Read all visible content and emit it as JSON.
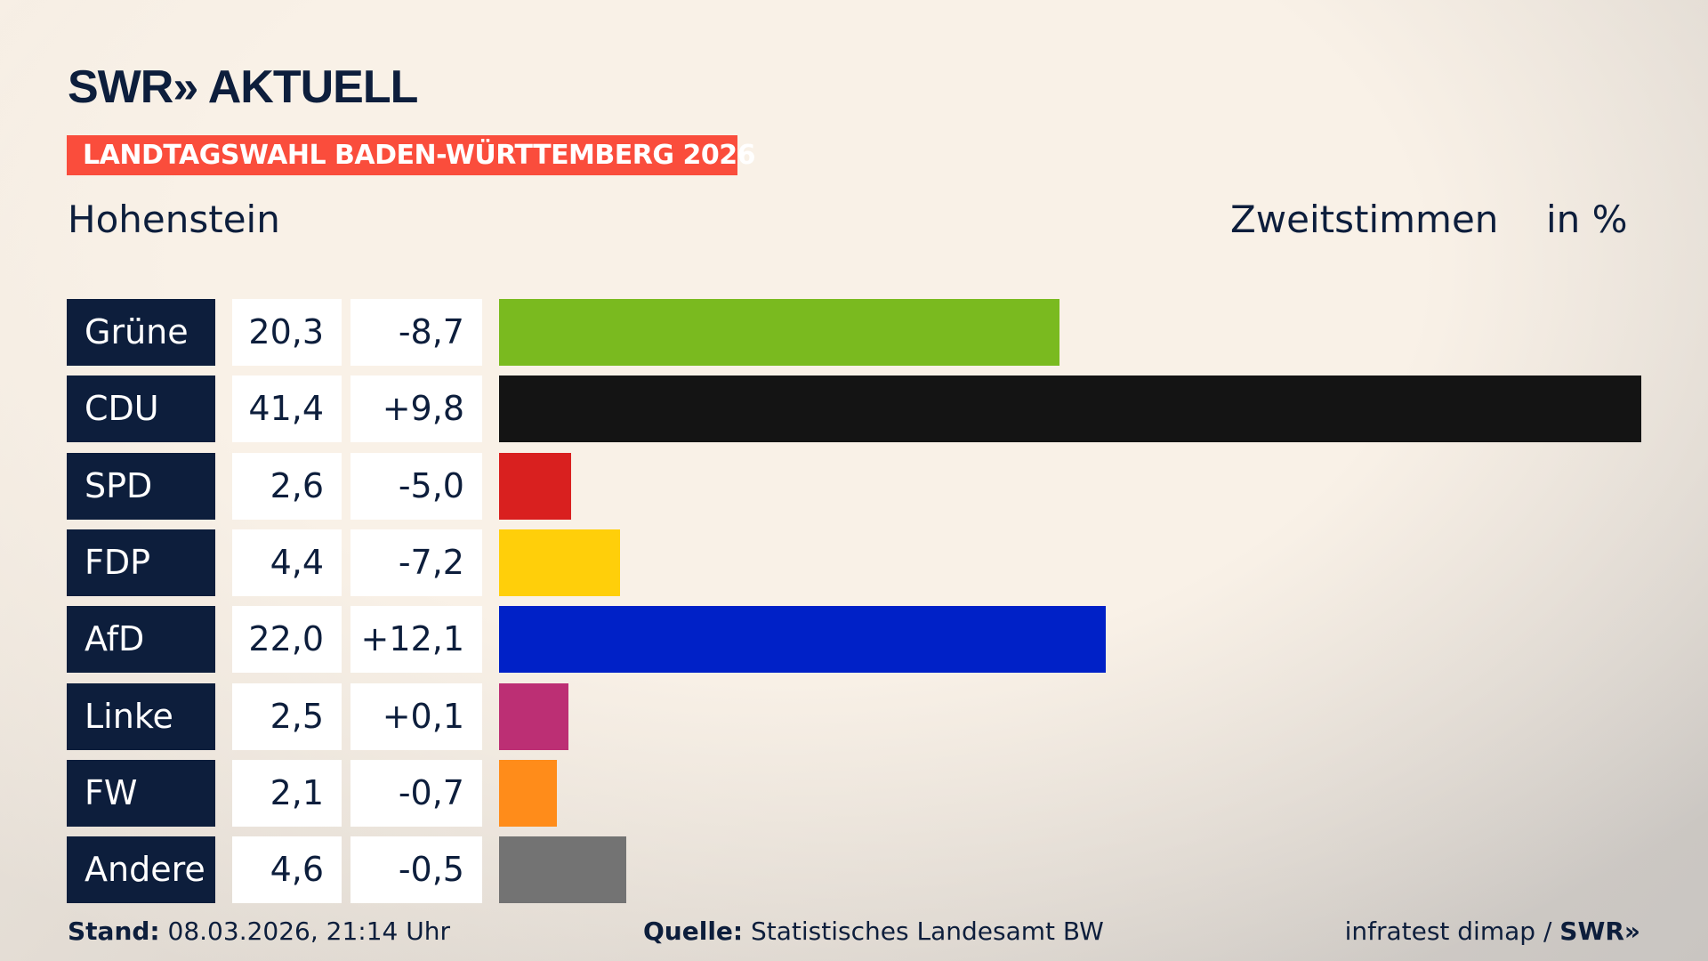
{
  "header": {
    "logo": "SWR» AKTUELL",
    "banner": "LANDTAGSWAHL BADEN-WÜRTTEMBERG 2026",
    "region": "Hohenstein",
    "metric": "Zweitstimmen",
    "unit": "in %"
  },
  "chart_data": {
    "type": "bar",
    "orientation": "horizontal",
    "xlim": [
      0,
      41.4
    ],
    "categories": [
      "Grüne",
      "CDU",
      "SPD",
      "FDP",
      "AfD",
      "Linke",
      "FW",
      "Andere"
    ],
    "values": [
      20.3,
      41.4,
      2.6,
      4.4,
      22.0,
      2.5,
      2.1,
      4.6
    ],
    "value_labels": [
      "20,3",
      "41,4",
      "2,6",
      "4,4",
      "22,0",
      "2,5",
      "2,1",
      "4,6"
    ],
    "change_labels": [
      "-8,7",
      "+9,8",
      "-5,0",
      "-7,2",
      "+12,1",
      "+0,1",
      "-0,7",
      "-0,5"
    ],
    "colors": [
      "#7aba1f",
      "#141414",
      "#d9201f",
      "#ffcf0a",
      "#0021c7",
      "#bc2f74",
      "#ff8c1a",
      "#737373"
    ]
  },
  "footer": {
    "stand_label": "Stand:",
    "stand_value": "08.03.2026, 21:14 Uhr",
    "source_label": "Quelle:",
    "source_value": "Statistisches Landesamt BW",
    "credit": "infratest dimap /",
    "credit_logo": "SWR»"
  }
}
